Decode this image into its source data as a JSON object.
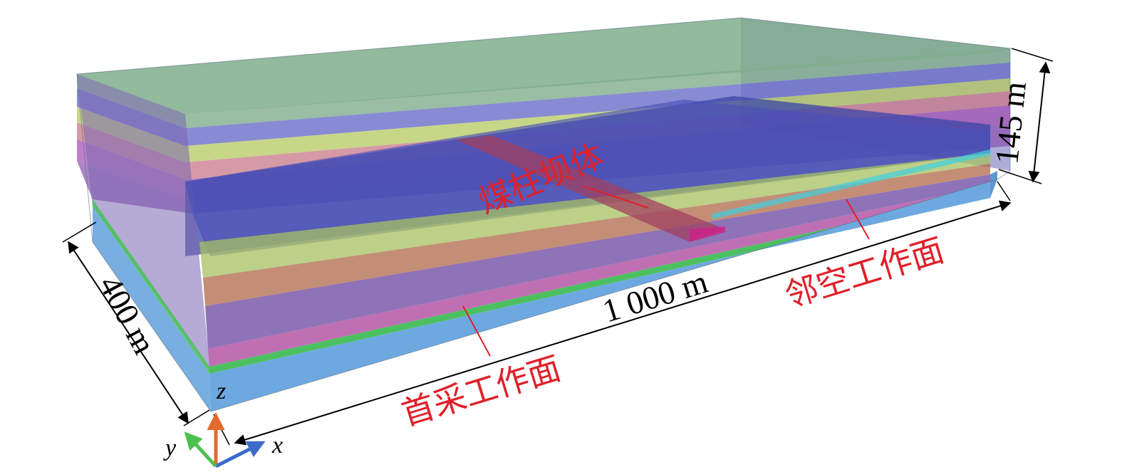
{
  "dimensions": {
    "length": "1 000 m",
    "width": "400 m",
    "height": "145 m"
  },
  "annotations": {
    "pillar": "煤柱坝体",
    "first_face": "首采工作面",
    "adjacent_face": "邻空工作面"
  },
  "axes": {
    "x": "x",
    "y": "y",
    "z": "z"
  },
  "colors": {
    "label_red": "#e0202a",
    "axis_x": "#3a6cc8",
    "axis_y": "#4cc04c",
    "axis_z": "#e26a2c",
    "stratum_top": "#7fae8c",
    "stratum_blue": "#5a5cc8",
    "stratum_yellow": "#b6c860",
    "stratum_orange": "#c86a3c",
    "stratum_magenta": "#a040a0",
    "coal_green": "#4cc060",
    "floor_blue": "#6ea8e0"
  }
}
